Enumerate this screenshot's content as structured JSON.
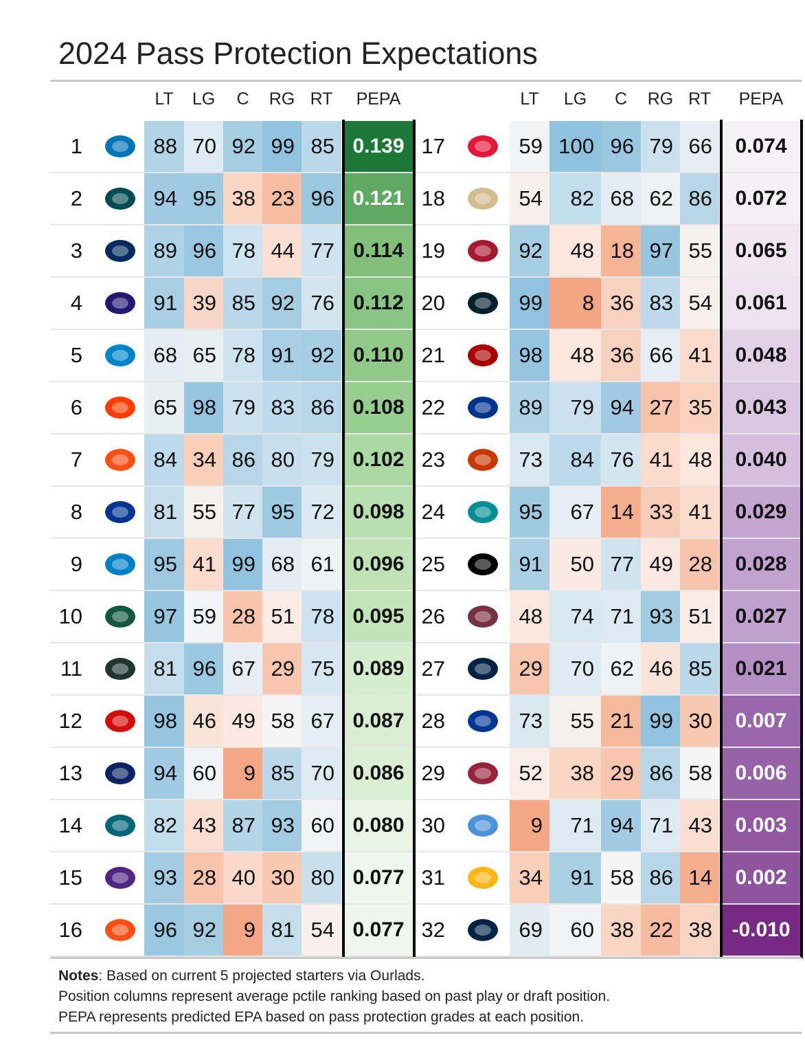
{
  "title": "2024 Pass Protection Expectations",
  "headers": [
    "LT",
    "LG",
    "C",
    "RG",
    "RT",
    "PEPA"
  ],
  "notes": {
    "label": "Notes",
    "line1": ": Based on current 5 projected starters via Ourlads.",
    "line2": "Position columns represent average pctile ranking based on past play or draft position.",
    "line3": "PEPA represents predicted EPA based on pass protection grades at each position."
  },
  "chart_data": {
    "type": "table",
    "title": "2024 Pass Protection Expectations",
    "columns": [
      "Rank",
      "Team logo",
      "LT",
      "LG",
      "C",
      "RG",
      "RT",
      "PEPA"
    ],
    "color_scales": {
      "position_pctile": {
        "low": "#f4a582",
        "mid": "#f7f7f7",
        "high": "#8fc2dd"
      },
      "pepa_high": "#1b7837",
      "pepa_low": "#762a83"
    },
    "rows": [
      {
        "rank": 1,
        "logo": "DET",
        "logo_color": "#0076b6",
        "LT": 88,
        "LG": 70,
        "C": 92,
        "RG": 99,
        "RT": 85,
        "PEPA": "0.139"
      },
      {
        "rank": 2,
        "logo": "PHI",
        "logo_color": "#004c54",
        "LT": 94,
        "LG": 95,
        "C": 38,
        "RG": 23,
        "RT": 96,
        "PEPA": "0.121"
      },
      {
        "rank": 3,
        "logo": "IND",
        "logo_color": "#002c5f",
        "LT": 89,
        "LG": 96,
        "C": 78,
        "RG": 44,
        "RT": 77,
        "PEPA": "0.114"
      },
      {
        "rank": 4,
        "logo": "BAL",
        "logo_color": "#241773",
        "LT": 91,
        "LG": 39,
        "C": 85,
        "RG": 92,
        "RT": 76,
        "PEPA": "0.112"
      },
      {
        "rank": 5,
        "logo": "CAR",
        "logo_color": "#0085ca",
        "LT": 68,
        "LG": 65,
        "C": 78,
        "RG": 91,
        "RT": 92,
        "PEPA": "0.110"
      },
      {
        "rank": 6,
        "logo": "CLE",
        "logo_color": "#ff3c00",
        "LT": 65,
        "LG": 98,
        "C": 79,
        "RG": 83,
        "RT": 86,
        "PEPA": "0.108"
      },
      {
        "rank": 7,
        "logo": "CIN",
        "logo_color": "#fb4f14",
        "LT": 84,
        "LG": 34,
        "C": 86,
        "RG": 80,
        "RT": 79,
        "PEPA": "0.102"
      },
      {
        "rank": 8,
        "logo": "LAR",
        "logo_color": "#003594",
        "LT": 81,
        "LG": 55,
        "C": 77,
        "RG": 95,
        "RT": 72,
        "PEPA": "0.098"
      },
      {
        "rank": 9,
        "logo": "LAC",
        "logo_color": "#0080c6",
        "LT": 95,
        "LG": 41,
        "C": 99,
        "RG": 68,
        "RT": 61,
        "PEPA": "0.096"
      },
      {
        "rank": 10,
        "logo": "NYJ",
        "logo_color": "#125740",
        "LT": 97,
        "LG": 59,
        "C": 28,
        "RG": 51,
        "RT": 78,
        "PEPA": "0.095"
      },
      {
        "rank": 11,
        "logo": "GB",
        "logo_color": "#203731",
        "LT": 81,
        "LG": 96,
        "C": 67,
        "RG": 29,
        "RT": 75,
        "PEPA": "0.089"
      },
      {
        "rank": 12,
        "logo": "TB",
        "logo_color": "#d50a0a",
        "LT": 98,
        "LG": 46,
        "C": 49,
        "RG": 58,
        "RT": 67,
        "PEPA": "0.087"
      },
      {
        "rank": 13,
        "logo": "NYG",
        "logo_color": "#0b2265",
        "LT": 94,
        "LG": 60,
        "C": 9,
        "RG": 85,
        "RT": 70,
        "PEPA": "0.086"
      },
      {
        "rank": 14,
        "logo": "JAX",
        "logo_color": "#006778",
        "LT": 82,
        "LG": 43,
        "C": 87,
        "RG": 93,
        "RT": 60,
        "PEPA": "0.080"
      },
      {
        "rank": 15,
        "logo": "MIN",
        "logo_color": "#4f2683",
        "LT": 93,
        "LG": 28,
        "C": 40,
        "RG": 30,
        "RT": 80,
        "PEPA": "0.077"
      },
      {
        "rank": 16,
        "logo": "DEN",
        "logo_color": "#fb4f14",
        "LT": 96,
        "LG": 92,
        "C": 9,
        "RG": 81,
        "RT": 54,
        "PEPA": "0.077"
      },
      {
        "rank": 17,
        "logo": "KC",
        "logo_color": "#e31837",
        "LT": 59,
        "LG": 100,
        "C": 96,
        "RG": 79,
        "RT": 66,
        "PEPA": "0.074"
      },
      {
        "rank": 18,
        "logo": "NO",
        "logo_color": "#d3bc8d",
        "LT": 54,
        "LG": 82,
        "C": 68,
        "RG": 62,
        "RT": 86,
        "PEPA": "0.072"
      },
      {
        "rank": 19,
        "logo": "ATL",
        "logo_color": "#a71930",
        "LT": 92,
        "LG": 48,
        "C": 18,
        "RG": 97,
        "RT": 55,
        "PEPA": "0.065"
      },
      {
        "rank": 20,
        "logo": "HOU",
        "logo_color": "#03202f",
        "LT": 99,
        "LG": 8,
        "C": 36,
        "RG": 83,
        "RT": 54,
        "PEPA": "0.061"
      },
      {
        "rank": 21,
        "logo": "SF",
        "logo_color": "#aa0000",
        "LT": 98,
        "LG": 48,
        "C": 36,
        "RG": 66,
        "RT": 41,
        "PEPA": "0.048"
      },
      {
        "rank": 22,
        "logo": "BUF",
        "logo_color": "#00338d",
        "LT": 89,
        "LG": 79,
        "C": 94,
        "RG": 27,
        "RT": 35,
        "PEPA": "0.043"
      },
      {
        "rank": 23,
        "logo": "CHI",
        "logo_color": "#c83803",
        "LT": 73,
        "LG": 84,
        "C": 76,
        "RG": 41,
        "RT": 48,
        "PEPA": "0.040"
      },
      {
        "rank": 24,
        "logo": "MIA",
        "logo_color": "#008e97",
        "LT": 95,
        "LG": 67,
        "C": 14,
        "RG": 33,
        "RT": 41,
        "PEPA": "0.029"
      },
      {
        "rank": 25,
        "logo": "LV",
        "logo_color": "#000000",
        "LT": 91,
        "LG": 50,
        "C": 77,
        "RG": 49,
        "RT": 28,
        "PEPA": "0.028"
      },
      {
        "rank": 26,
        "logo": "WAS",
        "logo_color": "#773141",
        "LT": 48,
        "LG": 74,
        "C": 71,
        "RG": 93,
        "RT": 51,
        "PEPA": "0.027"
      },
      {
        "rank": 27,
        "logo": "NE",
        "logo_color": "#002244",
        "LT": 29,
        "LG": 70,
        "C": 62,
        "RG": 46,
        "RT": 85,
        "PEPA": "0.021"
      },
      {
        "rank": 28,
        "logo": "DAL",
        "logo_color": "#003594",
        "LT": 73,
        "LG": 55,
        "C": 21,
        "RG": 99,
        "RT": 30,
        "PEPA": "0.007"
      },
      {
        "rank": 29,
        "logo": "ARI",
        "logo_color": "#97233f",
        "LT": 52,
        "LG": 38,
        "C": 29,
        "RG": 86,
        "RT": 58,
        "PEPA": "0.006"
      },
      {
        "rank": 30,
        "logo": "TEN",
        "logo_color": "#4b92db",
        "LT": 9,
        "LG": 71,
        "C": 94,
        "RG": 71,
        "RT": 43,
        "PEPA": "0.003"
      },
      {
        "rank": 31,
        "logo": "PIT",
        "logo_color": "#ffb612",
        "LT": 34,
        "LG": 91,
        "C": 58,
        "RG": 86,
        "RT": 14,
        "PEPA": "0.002"
      },
      {
        "rank": 32,
        "logo": "SEA",
        "logo_color": "#002244",
        "LT": 69,
        "LG": 60,
        "C": 38,
        "RG": 22,
        "RT": 38,
        "PEPA": "-0.010"
      }
    ]
  }
}
